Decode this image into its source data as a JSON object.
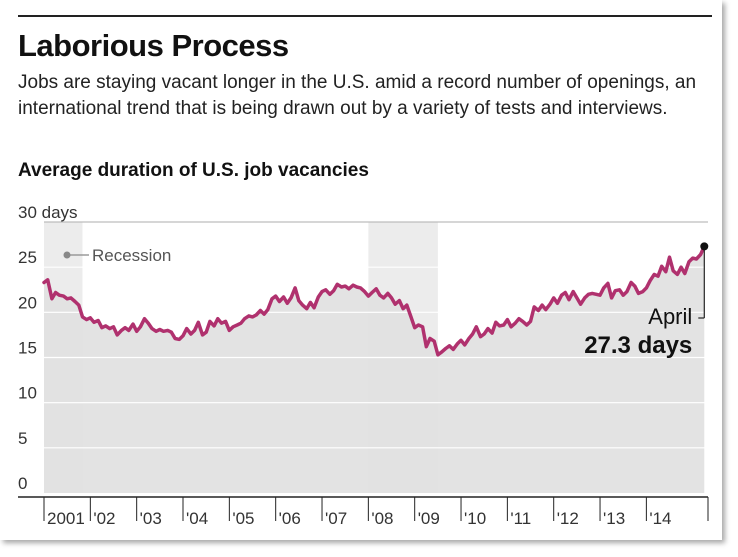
{
  "header": {
    "title": "Laborious Process",
    "subtitle": "Jobs are staying vacant longer in the U.S. amid a record number of openings, an international trend that is being drawn out by a variety of tests and interviews."
  },
  "chart_data": {
    "type": "line",
    "title": "Average duration of U.S. job vacancies",
    "ylim": [
      0,
      30
    ],
    "yticks": [
      {
        "value": 30,
        "label": "30 days"
      },
      {
        "value": 25,
        "label": "25"
      },
      {
        "value": 20,
        "label": "20"
      },
      {
        "value": 15,
        "label": "15"
      },
      {
        "value": 10,
        "label": "10"
      },
      {
        "value": 5,
        "label": "5"
      },
      {
        "value": 0,
        "label": "0"
      }
    ],
    "xlim": [
      2001.0,
      2015.33
    ],
    "xticks": [
      {
        "year": 2001,
        "label": "2001"
      },
      {
        "year": 2002,
        "label": "'02"
      },
      {
        "year": 2003,
        "label": "'03"
      },
      {
        "year": 2004,
        "label": "'04"
      },
      {
        "year": 2005,
        "label": "'05"
      },
      {
        "year": 2006,
        "label": "'06"
      },
      {
        "year": 2007,
        "label": "'07"
      },
      {
        "year": 2008,
        "label": "'08"
      },
      {
        "year": 2009,
        "label": "'09"
      },
      {
        "year": 2010,
        "label": "'10"
      },
      {
        "year": 2011,
        "label": "'11"
      },
      {
        "year": 2012,
        "label": "'12"
      },
      {
        "year": 2013,
        "label": "'13"
      },
      {
        "year": 2014,
        "label": "'14"
      }
    ],
    "recessions": [
      {
        "start": 2001.0,
        "end": 2001.83
      },
      {
        "start": 2008.0,
        "end": 2009.5
      }
    ],
    "recession_label": "Recession",
    "series": [
      {
        "color": "#b0316e",
        "fill": "#e2e2e2",
        "points": [
          [
            2001.0,
            23.3
          ],
          [
            2001.08,
            23.6
          ],
          [
            2001.17,
            21.5
          ],
          [
            2001.25,
            22.2
          ],
          [
            2001.33,
            21.9
          ],
          [
            2001.42,
            21.8
          ],
          [
            2001.5,
            21.5
          ],
          [
            2001.58,
            21.6
          ],
          [
            2001.67,
            21.2
          ],
          [
            2001.75,
            20.8
          ],
          [
            2001.83,
            19.5
          ],
          [
            2001.92,
            19.2
          ],
          [
            2002.0,
            19.4
          ],
          [
            2002.08,
            18.9
          ],
          [
            2002.17,
            19.1
          ],
          [
            2002.25,
            18.3
          ],
          [
            2002.33,
            18.5
          ],
          [
            2002.42,
            18.2
          ],
          [
            2002.5,
            18.4
          ],
          [
            2002.58,
            17.5
          ],
          [
            2002.67,
            18.0
          ],
          [
            2002.75,
            18.3
          ],
          [
            2002.83,
            18.0
          ],
          [
            2002.92,
            18.7
          ],
          [
            2003.0,
            17.9
          ],
          [
            2003.08,
            18.4
          ],
          [
            2003.17,
            19.3
          ],
          [
            2003.25,
            18.8
          ],
          [
            2003.33,
            18.2
          ],
          [
            2003.42,
            17.9
          ],
          [
            2003.5,
            18.1
          ],
          [
            2003.58,
            17.9
          ],
          [
            2003.67,
            18.0
          ],
          [
            2003.75,
            17.8
          ],
          [
            2003.83,
            17.1
          ],
          [
            2003.92,
            17.0
          ],
          [
            2004.0,
            17.4
          ],
          [
            2004.08,
            18.2
          ],
          [
            2004.17,
            17.6
          ],
          [
            2004.25,
            18.0
          ],
          [
            2004.33,
            18.9
          ],
          [
            2004.42,
            17.5
          ],
          [
            2004.5,
            17.8
          ],
          [
            2004.58,
            19.0
          ],
          [
            2004.67,
            18.5
          ],
          [
            2004.75,
            19.3
          ],
          [
            2004.83,
            18.8
          ],
          [
            2004.92,
            19.0
          ],
          [
            2005.0,
            18.0
          ],
          [
            2005.08,
            18.4
          ],
          [
            2005.17,
            18.6
          ],
          [
            2005.25,
            18.8
          ],
          [
            2005.33,
            19.3
          ],
          [
            2005.42,
            19.6
          ],
          [
            2005.5,
            19.5
          ],
          [
            2005.58,
            19.7
          ],
          [
            2005.67,
            20.2
          ],
          [
            2005.75,
            19.8
          ],
          [
            2005.83,
            20.3
          ],
          [
            2005.92,
            21.5
          ],
          [
            2006.0,
            21.8
          ],
          [
            2006.08,
            21.2
          ],
          [
            2006.17,
            21.7
          ],
          [
            2006.25,
            21.0
          ],
          [
            2006.33,
            21.6
          ],
          [
            2006.42,
            22.7
          ],
          [
            2006.5,
            21.3
          ],
          [
            2006.58,
            20.8
          ],
          [
            2006.67,
            20.4
          ],
          [
            2006.75,
            21.1
          ],
          [
            2006.83,
            20.5
          ],
          [
            2006.92,
            21.7
          ],
          [
            2007.0,
            22.3
          ],
          [
            2007.08,
            22.5
          ],
          [
            2007.17,
            22.0
          ],
          [
            2007.25,
            22.4
          ],
          [
            2007.33,
            23.1
          ],
          [
            2007.42,
            22.8
          ],
          [
            2007.5,
            22.9
          ],
          [
            2007.58,
            22.6
          ],
          [
            2007.67,
            23.0
          ],
          [
            2007.75,
            22.8
          ],
          [
            2007.83,
            22.7
          ],
          [
            2007.92,
            22.3
          ],
          [
            2008.0,
            21.8
          ],
          [
            2008.08,
            22.2
          ],
          [
            2008.17,
            22.6
          ],
          [
            2008.25,
            21.9
          ],
          [
            2008.33,
            21.6
          ],
          [
            2008.42,
            22.1
          ],
          [
            2008.5,
            21.6
          ],
          [
            2008.58,
            20.9
          ],
          [
            2008.67,
            21.3
          ],
          [
            2008.75,
            20.4
          ],
          [
            2008.83,
            20.8
          ],
          [
            2008.92,
            19.5
          ],
          [
            2009.0,
            18.3
          ],
          [
            2009.08,
            18.6
          ],
          [
            2009.17,
            18.4
          ],
          [
            2009.25,
            16.2
          ],
          [
            2009.33,
            17.1
          ],
          [
            2009.42,
            16.8
          ],
          [
            2009.5,
            15.3
          ],
          [
            2009.58,
            15.6
          ],
          [
            2009.67,
            16.0
          ],
          [
            2009.75,
            16.3
          ],
          [
            2009.83,
            15.9
          ],
          [
            2009.92,
            16.5
          ],
          [
            2010.0,
            16.9
          ],
          [
            2010.08,
            16.4
          ],
          [
            2010.17,
            17.1
          ],
          [
            2010.25,
            17.6
          ],
          [
            2010.33,
            18.4
          ],
          [
            2010.42,
            17.3
          ],
          [
            2010.5,
            17.6
          ],
          [
            2010.58,
            18.2
          ],
          [
            2010.67,
            17.7
          ],
          [
            2010.75,
            18.9
          ],
          [
            2010.83,
            18.5
          ],
          [
            2010.92,
            18.6
          ],
          [
            2011.0,
            19.2
          ],
          [
            2011.08,
            18.4
          ],
          [
            2011.17,
            18.8
          ],
          [
            2011.25,
            19.3
          ],
          [
            2011.33,
            19.0
          ],
          [
            2011.42,
            18.6
          ],
          [
            2011.5,
            19.0
          ],
          [
            2011.58,
            20.6
          ],
          [
            2011.67,
            20.2
          ],
          [
            2011.75,
            20.8
          ],
          [
            2011.83,
            20.3
          ],
          [
            2011.92,
            20.9
          ],
          [
            2012.0,
            21.6
          ],
          [
            2012.08,
            21.0
          ],
          [
            2012.17,
            21.9
          ],
          [
            2012.25,
            22.2
          ],
          [
            2012.33,
            21.4
          ],
          [
            2012.42,
            22.3
          ],
          [
            2012.5,
            21.6
          ],
          [
            2012.58,
            20.9
          ],
          [
            2012.67,
            21.6
          ],
          [
            2012.75,
            22.0
          ],
          [
            2012.83,
            22.1
          ],
          [
            2012.92,
            22.0
          ],
          [
            2013.0,
            21.9
          ],
          [
            2013.08,
            22.7
          ],
          [
            2013.17,
            23.2
          ],
          [
            2013.25,
            21.6
          ],
          [
            2013.33,
            22.4
          ],
          [
            2013.42,
            22.5
          ],
          [
            2013.5,
            21.9
          ],
          [
            2013.58,
            22.3
          ],
          [
            2013.67,
            23.3
          ],
          [
            2013.75,
            22.9
          ],
          [
            2013.83,
            22.1
          ],
          [
            2013.92,
            22.3
          ],
          [
            2014.0,
            22.7
          ],
          [
            2014.08,
            23.5
          ],
          [
            2014.17,
            24.2
          ],
          [
            2014.25,
            24.0
          ],
          [
            2014.33,
            25.1
          ],
          [
            2014.42,
            24.5
          ],
          [
            2014.5,
            26.1
          ],
          [
            2014.58,
            24.6
          ],
          [
            2014.67,
            24.2
          ],
          [
            2014.75,
            25.0
          ],
          [
            2014.83,
            24.3
          ],
          [
            2014.92,
            25.6
          ],
          [
            2015.0,
            26.0
          ],
          [
            2015.08,
            25.9
          ],
          [
            2015.17,
            26.4
          ],
          [
            2015.25,
            27.3
          ]
        ]
      }
    ],
    "annotation": {
      "month": "April",
      "value_label": "27.3 days",
      "x": 2015.25,
      "y": 27.3
    }
  }
}
